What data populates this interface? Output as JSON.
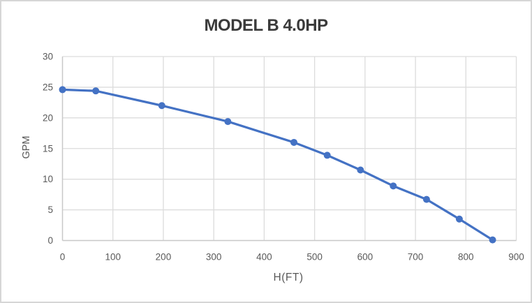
{
  "chart_data": {
    "type": "line",
    "title": "MODEL B 4.0HP",
    "xlabel": "H(FT)",
    "ylabel": "GPM",
    "x": [
      0,
      66,
      197,
      328,
      459,
      525,
      591,
      656,
      722,
      787,
      853
    ],
    "y": [
      24.6,
      24.4,
      22,
      19.4,
      16,
      13.9,
      11.5,
      8.9,
      6.7,
      3.5,
      0.1
    ],
    "xlim": [
      0,
      900
    ],
    "ylim": [
      0,
      30
    ],
    "x_ticks": [
      0,
      100,
      200,
      300,
      400,
      500,
      600,
      700,
      800,
      900
    ],
    "y_ticks": [
      0,
      5,
      10,
      15,
      20,
      25,
      30
    ],
    "grid": true,
    "legend": false,
    "marker": "circle",
    "colors": {
      "series": "#4472C4",
      "gridline": "#DCDCDC",
      "axis_line": "#C9C9C9",
      "tick_label": "#595959",
      "title": "#3A3A3A",
      "axis_title": "#595959",
      "background": "#FFFFFF",
      "border": "#D6D6D6"
    }
  }
}
